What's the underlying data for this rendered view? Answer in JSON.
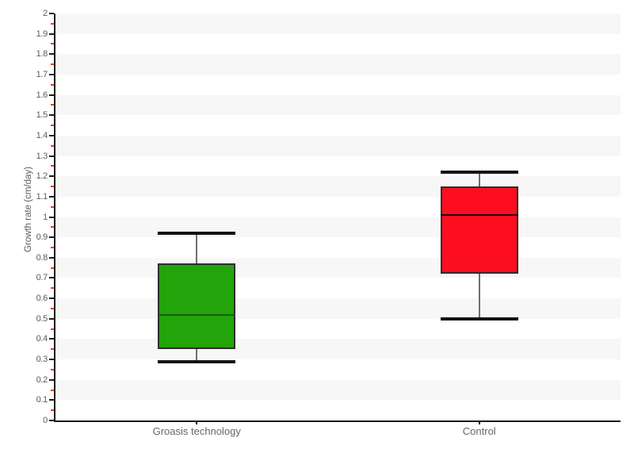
{
  "chart_data": {
    "type": "boxplot",
    "title": "",
    "xlabel": "",
    "ylabel": "Growth rate (cm/day)",
    "categories": [
      "Groasis technology",
      "Control"
    ],
    "boxes": [
      {
        "category": "Groasis technology",
        "min": 0.29,
        "q1": 0.35,
        "median": 0.52,
        "q3": 0.77,
        "max": 0.92,
        "fill_color": "#22a40a",
        "median_line_color": "#135c06"
      },
      {
        "category": "Control",
        "min": 0.5,
        "q1": 0.72,
        "median": 1.01,
        "q3": 1.15,
        "max": 1.22,
        "fill_color": "#fc0e1f",
        "median_line_color": "#2a060a"
      }
    ],
    "ylim": [
      0,
      2
    ],
    "ytick_step": 0.1,
    "yminor_tick_step": 0.05,
    "grid": "horizontal dashed gridlines every 0.1, vertical dashed line per category, alternating shaded bands",
    "legend_position": "none"
  },
  "style": {
    "background": "#ffffff",
    "band_color": "#f7f7f7",
    "hgrid_color": "#e3e3e3",
    "vgrid_color": "#ececec",
    "axis_color": "#1c1c1c",
    "minor_tick_color": "#f23a1e",
    "tick_label_color": "#5a5a5a",
    "category_label_color": "#666666",
    "whisker_color": "#6e6e6e",
    "whisker_cap_color": "#141414",
    "box_border_color": "#2e2e2e"
  }
}
